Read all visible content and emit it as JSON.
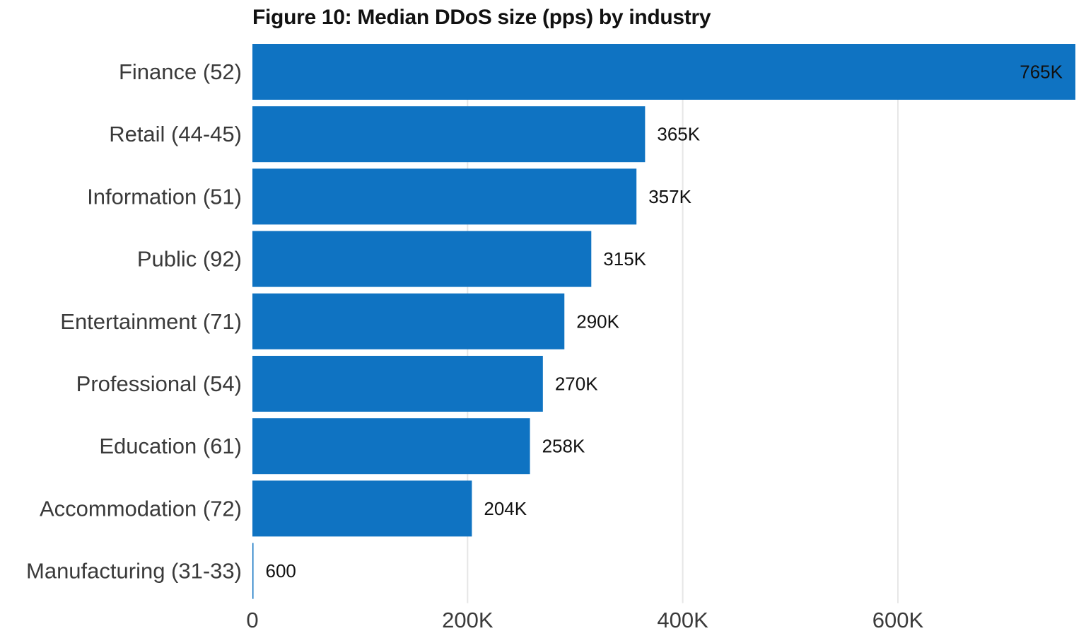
{
  "chart_data": {
    "type": "bar",
    "orientation": "horizontal",
    "title": "Figure 10: Median DDoS size (pps) by industry",
    "xlabel": "",
    "ylabel": "",
    "categories": [
      "Finance (52)",
      "Retail (44-45)",
      "Information (51)",
      "Public (92)",
      "Entertainment (71)",
      "Professional (54)",
      "Education (61)",
      "Accommodation (72)",
      "Manufacturing (31-33)"
    ],
    "values": [
      765000,
      365000,
      357000,
      315000,
      290000,
      270000,
      258000,
      204000,
      600
    ],
    "value_labels": [
      "765K",
      "365K",
      "357K",
      "315K",
      "290K",
      "270K",
      "258K",
      "204K",
      "600"
    ],
    "xlim": [
      0,
      765000
    ],
    "xticks": [
      0,
      200000,
      400000,
      600000
    ],
    "xtick_labels": [
      "0",
      "200K",
      "400K",
      "600K"
    ],
    "grid": "vertical",
    "legend": "none",
    "bar_color": "#0f73c2",
    "grid_color": "#e6e6e6"
  }
}
